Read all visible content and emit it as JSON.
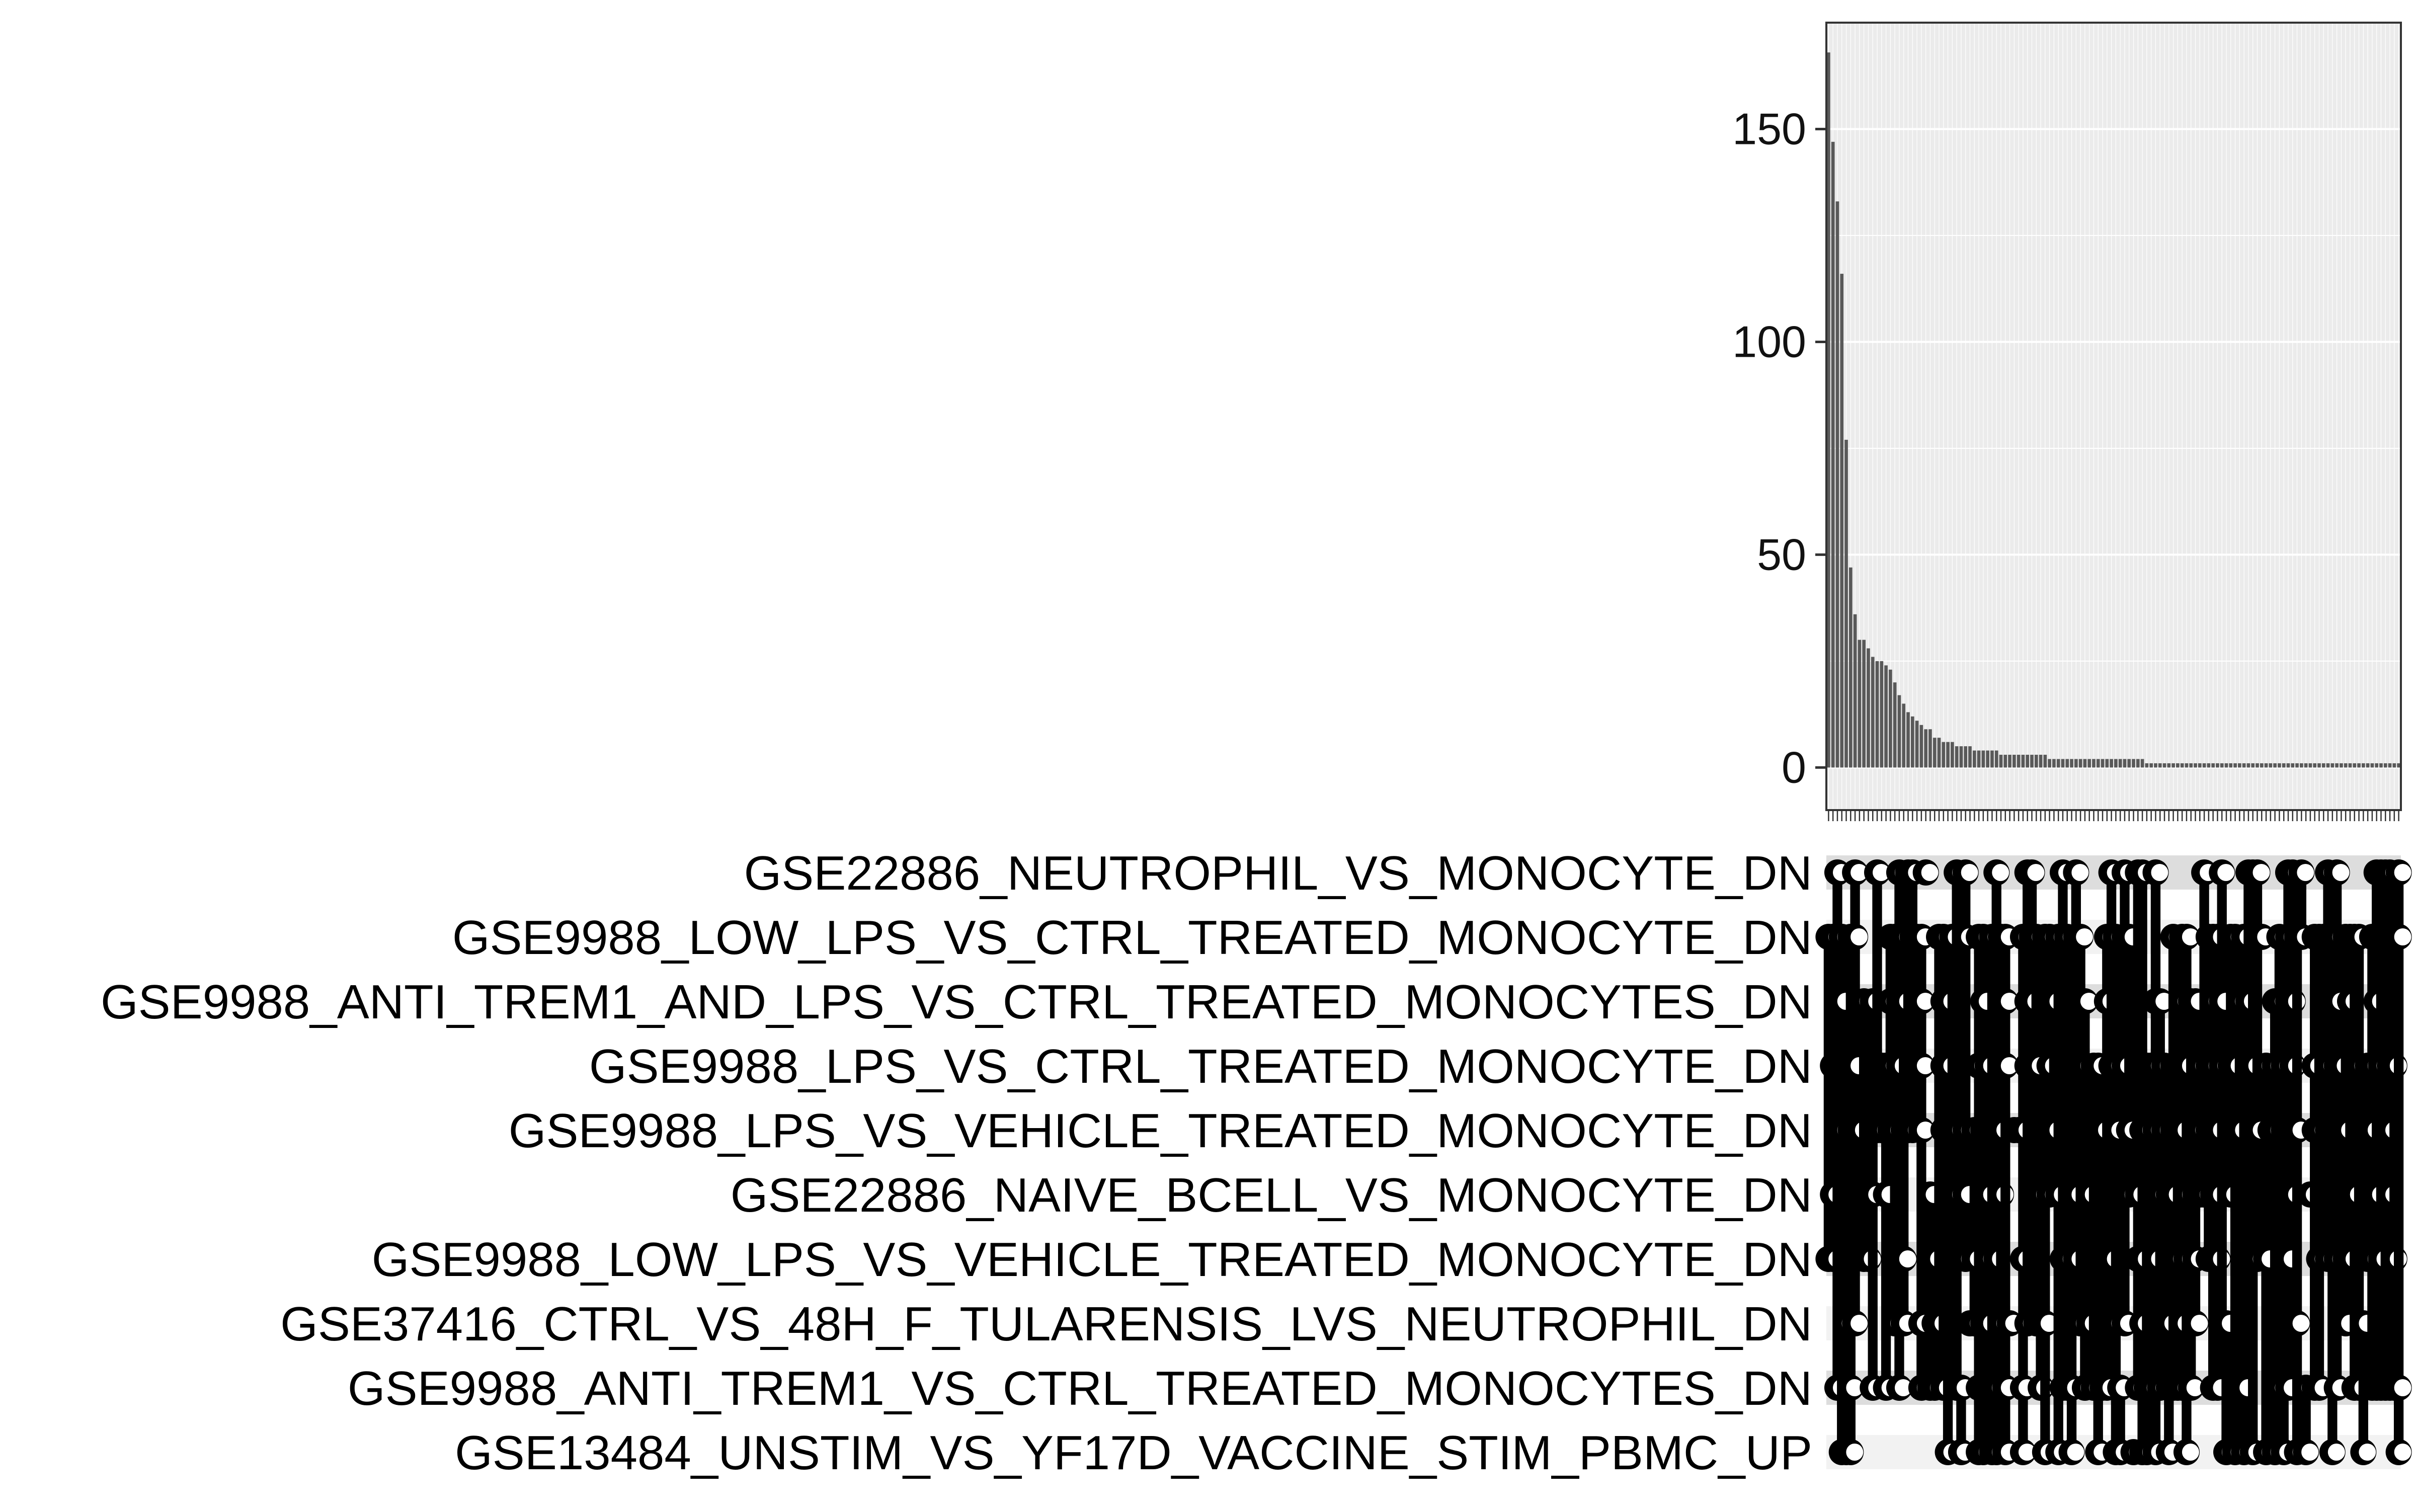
{
  "chart_data": {
    "type": "bar",
    "title": "",
    "xlabel": "",
    "ylabel": "",
    "grid": true,
    "ylim": [
      -10,
      175
    ],
    "y_ticks": [
      0,
      50,
      100,
      150
    ],
    "values": [
      168,
      147,
      133,
      116,
      77,
      47,
      36,
      30,
      30,
      28,
      26,
      25,
      25,
      24,
      23,
      20,
      17,
      15,
      13,
      12,
      11,
      10,
      9,
      9,
      7,
      7,
      6,
      6,
      6,
      5,
      5,
      5,
      5,
      4,
      4,
      4,
      4,
      4,
      4,
      3,
      3,
      3,
      3,
      3,
      3,
      3,
      3,
      3,
      3,
      3,
      2,
      2,
      2,
      2,
      2,
      2,
      2,
      2,
      2,
      2,
      2,
      2,
      2,
      2,
      2,
      2,
      2,
      2,
      2,
      2,
      2,
      2,
      1,
      1,
      1,
      1,
      1,
      1,
      1,
      1,
      1,
      1,
      1,
      1,
      1,
      1,
      1,
      1,
      1,
      1,
      1,
      1,
      1,
      1,
      1,
      1,
      1,
      1,
      1,
      1,
      1,
      1,
      1,
      1,
      1,
      1,
      1,
      1,
      1,
      1,
      1,
      1,
      1,
      1,
      1,
      1,
      1,
      1,
      1,
      1,
      1,
      1,
      1,
      1,
      1,
      1,
      1,
      1,
      1,
      1
    ],
    "sets": [
      "GSE22886_NEUTROPHIL_VS_MONOCYTE_DN",
      "GSE9988_LOW_LPS_VS_CTRL_TREATED_MONOCYTE_DN",
      "GSE9988_ANTI_TREM1_AND_LPS_VS_CTRL_TREATED_MONOCYTES_DN",
      "GSE9988_LPS_VS_CTRL_TREATED_MONOCYTE_DN",
      "GSE9988_LPS_VS_VEHICLE_TREATED_MONOCYTE_DN",
      "GSE22886_NAIVE_BCELL_VS_MONOCYTE_DN",
      "GSE9988_LOW_LPS_VS_VEHICLE_TREATED_MONOCYTE_DN",
      "GSE37416_CTRL_VS_48H_F_TULARENSIS_LVS_NEUTROPHIL_DN",
      "GSE9988_ANTI_TREM1_VS_CTRL_TREATED_MONOCYTES_DN",
      "GSE13484_UNSTIM_VS_YF17D_VACCINE_STIM_PBMC_UP"
    ],
    "colors": {
      "bar": "#595959",
      "panel": "#ebebeb",
      "grid": "#ffffff",
      "stripe": "#dddddd",
      "stripe_alt": "#f2f2f2",
      "dot": "#000000",
      "text": "#000000",
      "axis_text": "#111111"
    }
  }
}
